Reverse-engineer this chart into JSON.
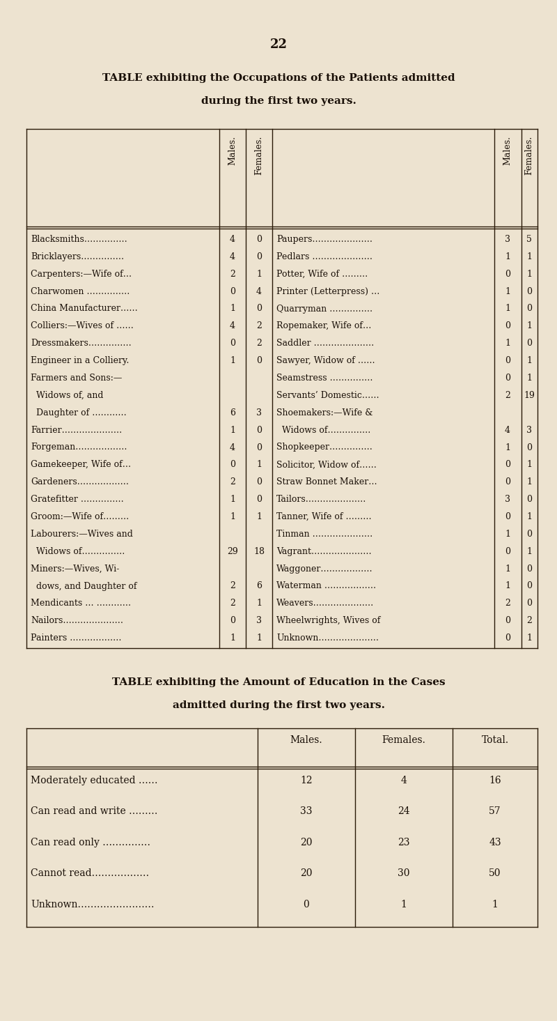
{
  "bg_color": "#ede3d0",
  "page_number": "22",
  "title1": "TABLE exhibiting the Occupations of the Patients admitted",
  "title2": "during the first two years.",
  "title3": "TABLE exhibiting the Amount of Education in the Cases",
  "title4": "admitted during the first two years.",
  "occ_left": [
    [
      "Blacksmiths……………",
      "4",
      "0"
    ],
    [
      "Bricklayers……………",
      "4",
      "0"
    ],
    [
      "Carpenters:—Wife of…",
      "2",
      "1"
    ],
    [
      "Charwomen ……………",
      "0",
      "4"
    ],
    [
      "China Manufacturer……",
      "1",
      "0"
    ],
    [
      "Colliers:—Wives of ……",
      "4",
      "2"
    ],
    [
      "Dressmakers……………",
      "0",
      "2"
    ],
    [
      "Engineer in a Colliery.",
      "1",
      "0"
    ],
    [
      "Farmers and Sons:—",
      "",
      ""
    ],
    [
      "  Widows of, and",
      "",
      ""
    ],
    [
      "  Daughter of …………",
      "6",
      "3"
    ],
    [
      "Farrier…………………",
      "1",
      "0"
    ],
    [
      "Forgeman………………",
      "4",
      "0"
    ],
    [
      "Gamekeeper, Wife of…",
      "0",
      "1"
    ],
    [
      "Gardeners………………",
      "2",
      "0"
    ],
    [
      "Gratefitter ……………",
      "1",
      "0"
    ],
    [
      "Groom:—Wife of………",
      "1",
      "1"
    ],
    [
      "Labourers:—Wives and",
      "",
      ""
    ],
    [
      "  Widows of……………",
      "29",
      "18"
    ],
    [
      "Miners:—Wives, Wi-",
      "",
      ""
    ],
    [
      "  dows, and Daughter of",
      "2",
      "6"
    ],
    [
      "Mendicants … …………",
      "2",
      "1"
    ],
    [
      "Nailors…………………",
      "0",
      "3"
    ],
    [
      "Painters ………………",
      "1",
      "1"
    ]
  ],
  "occ_right": [
    [
      "Paupers…………………",
      "3",
      "5"
    ],
    [
      "Pedlars …………………",
      "1",
      "1"
    ],
    [
      "Potter, Wife of ………",
      "0",
      "1"
    ],
    [
      "Printer (Letterpress) …",
      "1",
      "0"
    ],
    [
      "Quarryman ……………",
      "1",
      "0"
    ],
    [
      "Ropemaker, Wife of…",
      "0",
      "1"
    ],
    [
      "Saddler …………………",
      "1",
      "0"
    ],
    [
      "Sawyer, Widow of ……",
      "0",
      "1"
    ],
    [
      "Seamstress ……………",
      "0",
      "1"
    ],
    [
      "Servants’ Domestic……",
      "2",
      "19"
    ],
    [
      "Shoemakers:—Wife &",
      "",
      ""
    ],
    [
      "  Widows of……………",
      "4",
      "3"
    ],
    [
      "Shopkeeper……………",
      "1",
      "0"
    ],
    [
      "Solicitor, Widow of……",
      "0",
      "1"
    ],
    [
      "Straw Bonnet Maker…",
      "0",
      "1"
    ],
    [
      "Tailors…………………",
      "3",
      "0"
    ],
    [
      "Tanner, Wife of ………",
      "0",
      "1"
    ],
    [
      "Tinman …………………",
      "1",
      "0"
    ],
    [
      "Vagrant…………………",
      "0",
      "1"
    ],
    [
      "Waggoner………………",
      "1",
      "0"
    ],
    [
      "Waterman ………………",
      "1",
      "0"
    ],
    [
      "Weavers…………………",
      "2",
      "0"
    ],
    [
      "Wheelwrights, Wives of",
      "0",
      "2"
    ],
    [
      "Unknown…………………",
      "0",
      "1"
    ]
  ],
  "edu_rows": [
    [
      "Moderately educated ……",
      "12",
      "4",
      "16"
    ],
    [
      "Can read and write ………",
      "33",
      "24",
      "57"
    ],
    [
      "Can read only ……………",
      "20",
      "23",
      "43"
    ],
    [
      "Cannot read………………",
      "20",
      "30",
      "50"
    ],
    [
      "Unknown……………………",
      "0",
      "1",
      "1"
    ]
  ],
  "edu_headers": [
    "Males.",
    "Females.",
    "Total."
  ],
  "text_color": "#1a1008",
  "line_color": "#2a1a08"
}
